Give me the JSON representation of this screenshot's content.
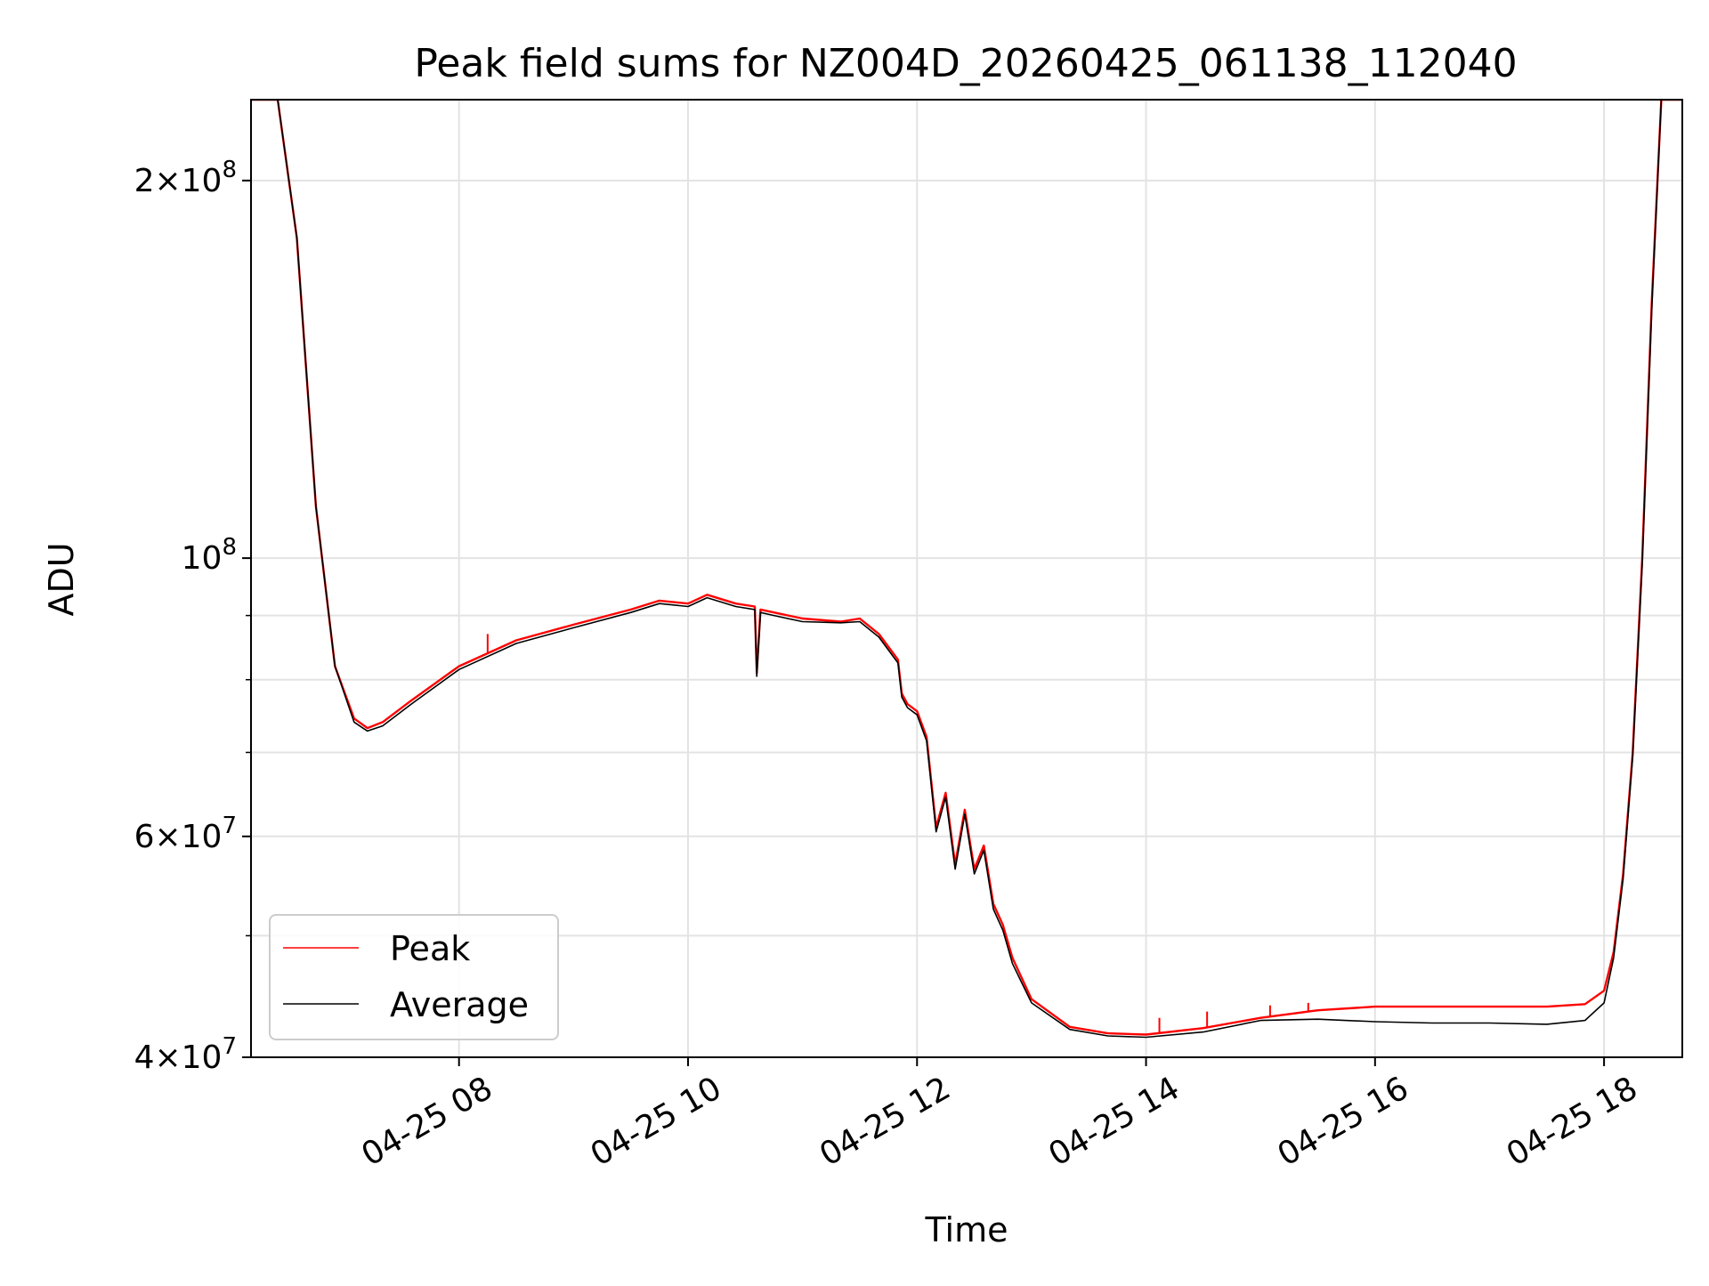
{
  "chart_data": {
    "type": "line",
    "title": "Peak field sums for NZ004D_20260425_061138_112040",
    "xlabel": "Time",
    "ylabel": "ADU",
    "yscale": "log",
    "grid": true,
    "legend_position": "lower-left",
    "x_range": [
      "04-25 06:11",
      "04-25 18:41"
    ],
    "ylim": [
      40000000,
      232000000
    ],
    "x_ticks": [
      "04-25 08",
      "04-25 10",
      "04-25 12",
      "04-25 14",
      "04-25 16",
      "04-25 18"
    ],
    "y_tick_labels": [
      {
        "value": 40000000,
        "mantissa": "4",
        "exponent": "7"
      },
      {
        "value": 60000000,
        "mantissa": "6",
        "exponent": "7"
      },
      {
        "value": 100000000,
        "mantissa": "",
        "exponent": "8"
      },
      {
        "value": 200000000,
        "mantissa": "2",
        "exponent": "8"
      }
    ],
    "y_minor_grid": [
      50000000,
      70000000,
      80000000,
      90000000
    ],
    "x": [
      "04-25 06:11",
      "04-25 06:25",
      "04-25 06:35",
      "04-25 06:45",
      "04-25 06:55",
      "04-25 07:05",
      "04-25 07:12",
      "04-25 07:20",
      "04-25 07:35",
      "04-25 08:00",
      "04-25 08:30",
      "04-25 09:00",
      "04-25 09:30",
      "04-25 09:45",
      "04-25 10:00",
      "04-25 10:10",
      "04-25 10:25",
      "04-25 10:35",
      "04-25 10:36",
      "04-25 10:38",
      "04-25 10:45",
      "04-25 11:00",
      "04-25 11:20",
      "04-25 11:30",
      "04-25 11:40",
      "04-25 11:50",
      "04-25 11:52",
      "04-25 11:55",
      "04-25 12:00",
      "04-25 12:05",
      "04-25 12:10",
      "04-25 12:15",
      "04-25 12:20",
      "04-25 12:25",
      "04-25 12:30",
      "04-25 12:35",
      "04-25 12:40",
      "04-25 12:45",
      "04-25 12:50",
      "04-25 13:00",
      "04-25 13:20",
      "04-25 13:40",
      "04-25 14:00",
      "04-25 14:30",
      "04-25 15:00",
      "04-25 15:30",
      "04-25 16:00",
      "04-25 16:30",
      "04-25 17:00",
      "04-25 17:30",
      "04-25 17:50",
      "04-25 18:00",
      "04-25 18:05",
      "04-25 18:10",
      "04-25 18:15",
      "04-25 18:20",
      "04-25 18:25",
      "04-25 18:30",
      "04-25 18:41"
    ],
    "series": [
      {
        "name": "Peak",
        "color": "#ff0000",
        "values": [
          232000000,
          232000000,
          180000000,
          110000000,
          82000000,
          74500000,
          73200000,
          74000000,
          77000000,
          82000000,
          86000000,
          88500000,
          91000000,
          92500000,
          92000000,
          93500000,
          92000000,
          91500000,
          81000000,
          91000000,
          90500000,
          89500000,
          89000000,
          89500000,
          87000000,
          83000000,
          78000000,
          76500000,
          75500000,
          72000000,
          61000000,
          65000000,
          57000000,
          63000000,
          56500000,
          59000000,
          53000000,
          51000000,
          48000000,
          44500000,
          42300000,
          41800000,
          41700000,
          42200000,
          43000000,
          43600000,
          43900000,
          43900000,
          43900000,
          43900000,
          44100000,
          45200000,
          48500000,
          56000000,
          70000000,
          100000000,
          160000000,
          232000000,
          232000000
        ],
        "spikes": [
          {
            "x": "04-25 08:15",
            "value": 87000000
          },
          {
            "x": "04-25 14:07",
            "value": 43000000
          },
          {
            "x": "04-25 14:32",
            "value": 43500000
          },
          {
            "x": "04-25 15:05",
            "value": 44000000
          },
          {
            "x": "04-25 15:25",
            "value": 44200000
          }
        ]
      },
      {
        "name": "Average",
        "color": "#000000",
        "values": [
          232000000,
          232000000,
          180000000,
          110000000,
          82000000,
          74000000,
          72800000,
          73500000,
          76500000,
          81500000,
          85500000,
          88000000,
          90500000,
          92000000,
          91500000,
          93000000,
          91500000,
          91000000,
          80500000,
          90500000,
          90000000,
          89000000,
          88800000,
          89000000,
          86500000,
          82500000,
          77500000,
          76000000,
          75000000,
          71500000,
          60500000,
          64500000,
          56500000,
          62500000,
          56000000,
          58500000,
          52500000,
          50500000,
          47500000,
          44200000,
          42100000,
          41600000,
          41500000,
          41900000,
          42800000,
          42900000,
          42700000,
          42600000,
          42600000,
          42500000,
          42800000,
          44200000,
          48000000,
          55500000,
          69500000,
          99000000,
          158000000,
          232000000,
          232000000
        ]
      }
    ]
  }
}
